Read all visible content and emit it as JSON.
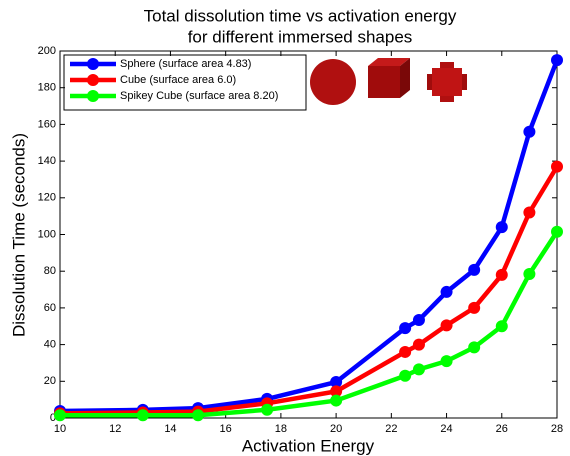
{
  "chart_data": {
    "type": "line",
    "title": [
      "Total dissolution time vs activation energy",
      "for different immersed shapes"
    ],
    "x_label": "Activation Energy",
    "y_label": "Dissolution Time (seconds)",
    "x": [
      10,
      13,
      15,
      17.5,
      20,
      22.5,
      23,
      24,
      25,
      26,
      27,
      28
    ],
    "series": [
      {
        "name": "Sphere (surface area 4.83)",
        "color": "#0000ff",
        "values": [
          3.8,
          4.4,
          5.4,
          10.4,
          19.6,
          49,
          53.4,
          68.7,
          80.7,
          104,
          156,
          195
        ]
      },
      {
        "name": "Cube (surface area 6.0)",
        "color": "#ff0000",
        "values": [
          2.5,
          3,
          3.5,
          8,
          14.5,
          36,
          40,
          50.5,
          60,
          78,
          112,
          137
        ]
      },
      {
        "name": "Spikey Cube (surface area 8.20)",
        "color": "#00ff00",
        "values": [
          1.5,
          1.5,
          1.5,
          4.5,
          9.5,
          23,
          26.5,
          31,
          38.5,
          50,
          78.5,
          101.5
        ]
      }
    ],
    "xlim": [
      10,
      28
    ],
    "xticks": [
      10,
      12,
      14,
      16,
      18,
      20,
      22,
      24,
      26,
      28
    ],
    "ylim": [
      0,
      200
    ],
    "yticks": [
      0,
      20,
      40,
      60,
      80,
      100,
      120,
      140,
      160,
      180,
      200
    ],
    "legend": "upper-left",
    "grid": false
  }
}
